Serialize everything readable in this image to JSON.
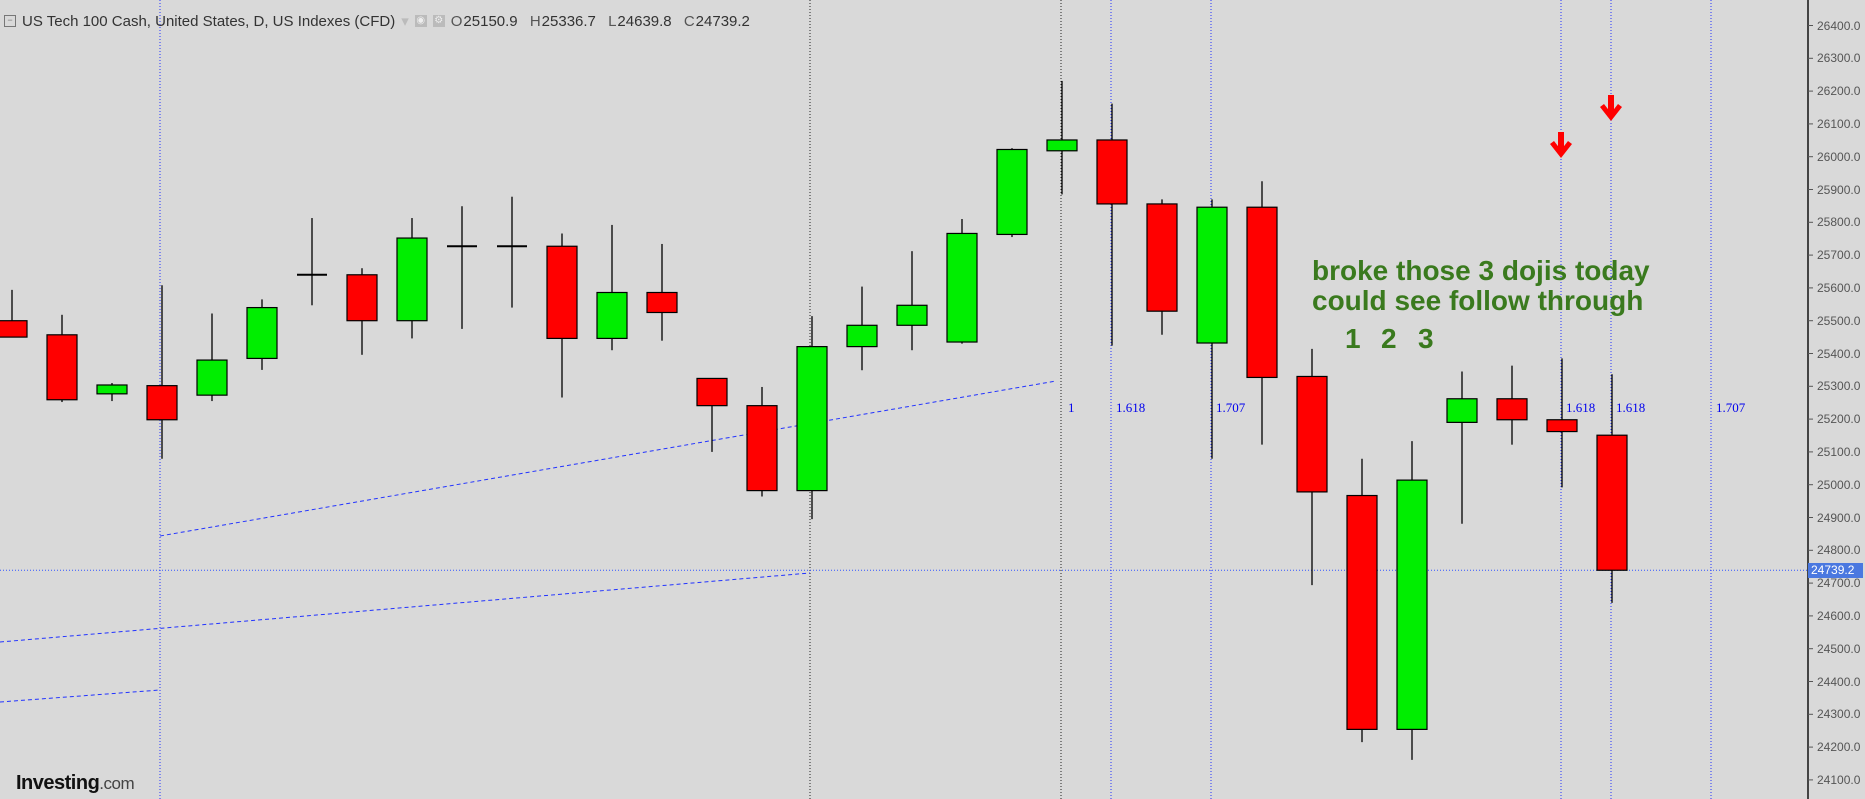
{
  "header": {
    "title": "US Tech 100 Cash, United States, D, US Indexes (CFD)",
    "ohlc": [
      {
        "k": "O",
        "v": "25150.9"
      },
      {
        "k": "H",
        "v": "25336.7"
      },
      {
        "k": "L",
        "v": "24639.8"
      },
      {
        "k": "C",
        "v": "24739.2"
      }
    ]
  },
  "chart_data": {
    "type": "candlestick",
    "ylim": [
      24050,
      26450
    ],
    "yticks": [
      "26400.0",
      "26300.0",
      "26200.0",
      "26100.0",
      "26000.0",
      "25900.0",
      "25800.0",
      "25700.0",
      "25600.0",
      "25500.0",
      "25400.0",
      "25300.0",
      "25200.0",
      "25100.0",
      "25000.0",
      "24900.0",
      "24800.0",
      "24700.0",
      "24600.0",
      "24500.0",
      "24400.0",
      "24300.0",
      "24200.0",
      "24100.0"
    ],
    "current_price": "24739.2",
    "candles": [
      {
        "o": 25500,
        "h": 25594,
        "l": 25450,
        "c": 25450
      },
      {
        "o": 25457,
        "h": 25518,
        "l": 25252,
        "c": 25259
      },
      {
        "o": 25277,
        "h": 25310,
        "l": 25255,
        "c": 25304
      },
      {
        "o": 25302,
        "h": 25608,
        "l": 25079,
        "c": 25198
      },
      {
        "o": 25273,
        "h": 25522,
        "l": 25255,
        "c": 25380
      },
      {
        "o": 25385,
        "h": 25565,
        "l": 25350,
        "c": 25540
      },
      {
        "o": 25640,
        "h": 25813,
        "l": 25547,
        "c": 25640
      },
      {
        "o": 25640,
        "h": 25660,
        "l": 25396,
        "c": 25500
      },
      {
        "o": 25500,
        "h": 25813,
        "l": 25446,
        "c": 25752
      },
      {
        "o": 25727,
        "h": 25849,
        "l": 25475,
        "c": 25727
      },
      {
        "o": 25727,
        "h": 25878,
        "l": 25540,
        "c": 25727
      },
      {
        "o": 25727,
        "h": 25766,
        "l": 25266,
        "c": 25446
      },
      {
        "o": 25446,
        "h": 25792,
        "l": 25410,
        "c": 25586
      },
      {
        "o": 25586,
        "h": 25734,
        "l": 25439,
        "c": 25525
      },
      {
        "o": 25324,
        "h": 25324,
        "l": 25100,
        "c": 25241
      },
      {
        "o": 25241,
        "h": 25298,
        "l": 24964,
        "c": 24982
      },
      {
        "o": 24982,
        "h": 25514,
        "l": 24895,
        "c": 25421
      },
      {
        "o": 25421,
        "h": 25604,
        "l": 25349,
        "c": 25486
      },
      {
        "o": 25486,
        "h": 25712,
        "l": 25410,
        "c": 25547
      },
      {
        "o": 25435,
        "h": 25810,
        "l": 25430,
        "c": 25766
      },
      {
        "o": 25763,
        "h": 26026,
        "l": 25755,
        "c": 26022
      },
      {
        "o": 26018,
        "h": 26231,
        "l": 25885,
        "c": 26051
      },
      {
        "o": 26051,
        "h": 26162,
        "l": 25424,
        "c": 25856
      },
      {
        "o": 25856,
        "h": 25870,
        "l": 25457,
        "c": 25529
      },
      {
        "o": 25432,
        "h": 25870,
        "l": 25079,
        "c": 25846
      },
      {
        "o": 25846,
        "h": 25925,
        "l": 25122,
        "c": 25327
      },
      {
        "o": 25330,
        "h": 25414,
        "l": 24694,
        "c": 24978
      },
      {
        "o": 24967,
        "h": 25079,
        "l": 24215,
        "c": 24254
      },
      {
        "o": 24254,
        "h": 25133,
        "l": 24161,
        "c": 25014
      },
      {
        "o": 25190,
        "h": 25345,
        "l": 24881,
        "c": 25262
      },
      {
        "o": 25262,
        "h": 25363,
        "l": 25122,
        "c": 25198
      },
      {
        "o": 25198,
        "h": 25385,
        "l": 24992,
        "c": 25162
      },
      {
        "o": 25150.9,
        "h": 25336.7,
        "l": 24639.8,
        "c": 24739.2
      }
    ],
    "colors": {
      "up": "#00ee00",
      "down": "#ff0000",
      "fib": "#0000ee",
      "annotation": "#3a7a1e",
      "current": "#4a78e0"
    }
  },
  "fib_labels": [
    "1",
    "1.618",
    "1.707",
    "1.618",
    "1.618",
    "1.707"
  ],
  "annotation": {
    "line1": "broke those 3 dojis today",
    "line2": "could see follow through",
    "numbers": [
      "1",
      "2",
      "3"
    ],
    "arrow_icon": "down-arrow-icon"
  },
  "logo": {
    "main": "Investing",
    "suffix": ".com"
  }
}
